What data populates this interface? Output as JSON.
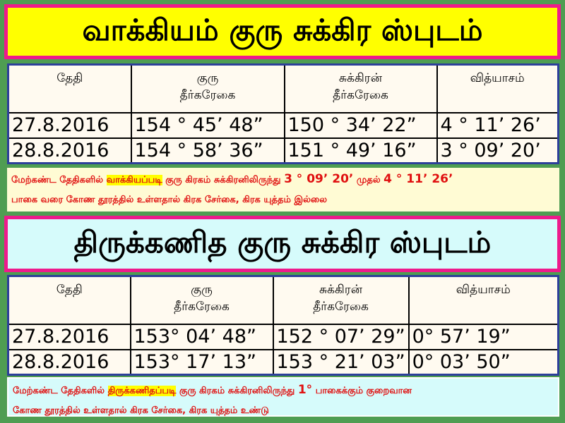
{
  "section1": {
    "title": "வாக்கியம் குரு சுக்கிர ஸ்புடம்",
    "headers_lines": [
      [
        "தேதி"
      ],
      [
        "குரு",
        "தீர்கரேகை"
      ],
      [
        "சுக்கிரன்",
        "தீர்கரேகை"
      ],
      [
        "வித்யாசம்"
      ]
    ],
    "rows": [
      [
        "27.8.2016",
        "154 ° 45’ 48”",
        "150 ° 34’ 22”",
        "4 ° 11’ 26’"
      ],
      [
        "28.8.2016",
        "154 ° 58’ 36”",
        "151 ° 49’ 16”",
        "3 ° 09’ 20’"
      ]
    ],
    "note": {
      "part1": "மேற்கண்ட தேதிகளில் ",
      "highlight": "வாக்கியப்படி",
      "part2": " குரு கிரகம் சுக்கிரனிலிருந்து ",
      "value1": "3 ° 09’ 20’",
      "part3": " முதல் ",
      "value2": "4 ° 11’ 26’",
      "line2": "பாகை வரை கோண தூரத்தில் உள்ளதால் கிரக சேர்கை, கிரக யுத்தம் இல்லை"
    }
  },
  "section2": {
    "title": "திருக்கணித குரு சுக்கிர ஸ்புடம்",
    "headers_lines": [
      [
        "தேதி"
      ],
      [
        "குரு",
        "தீர்கரேகை"
      ],
      [
        "சுக்கிரன்",
        "தீர்கரேகை"
      ],
      [
        "வித்யாசம்"
      ]
    ],
    "rows": [
      [
        "27.8.2016",
        "153° 04’ 48”",
        "152 ° 07’ 29”",
        "0° 57’ 19”"
      ],
      [
        "28.8.2016",
        "153° 17’ 13”",
        "153 ° 21’ 03”",
        "0° 03’ 50”"
      ]
    ],
    "note": {
      "part1": "மேற்கண்ட தேதிகளில் ",
      "highlight": "திருக்கணிதப்படி",
      "part2": " குரு கிரகம் சுக்கிரனிலிருந்து ",
      "value1": "1°",
      "part3": " பாகைக்கும்  குறைவான",
      "line2": "கோண தூரத்தில் உள்ளதால் கிரக சேர்கை, கிரக யுத்தம் உண்டு"
    }
  },
  "colors": {
    "background": "#4f9d52",
    "title1_bg": "#ffff00",
    "title_border": "#ee1a8c",
    "title2_bg": "#d6fbfb",
    "note_text": "#e01010"
  }
}
